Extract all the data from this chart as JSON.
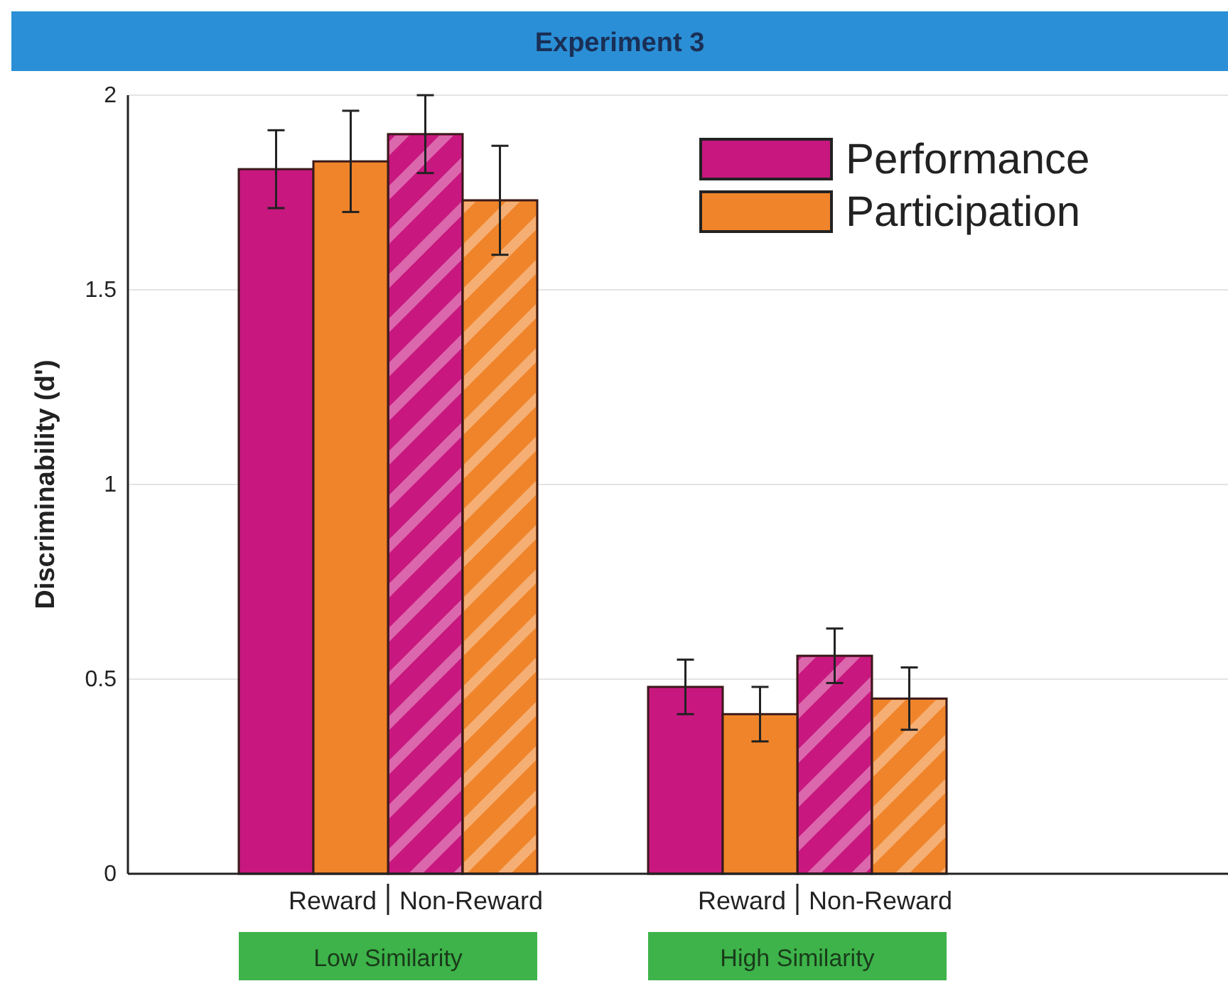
{
  "chart_data": {
    "type": "bar",
    "title": "Experiment 3",
    "ylabel": "Discriminability (d')",
    "categories": [
      "Reward",
      "Non-Reward",
      "Reward",
      "Non-Reward"
    ],
    "series": [
      {
        "name": "Performance",
        "color": "#c8177f",
        "values": [
          1.81,
          1.9,
          0.48,
          0.56
        ],
        "errors": [
          0.1,
          0.1,
          0.07,
          0.07
        ]
      },
      {
        "name": "Participation",
        "color": "#f0842a",
        "values": [
          1.83,
          1.73,
          0.41,
          0.45
        ],
        "errors": [
          0.13,
          0.14,
          0.07,
          0.08
        ]
      }
    ],
    "annotations": [
      "Low Similarity",
      "High Similarity"
    ],
    "ylim": [
      0,
      2
    ],
    "yticks": [
      0,
      0.5,
      1,
      1.5,
      2
    ],
    "grid": "y",
    "legend": "top right"
  }
}
